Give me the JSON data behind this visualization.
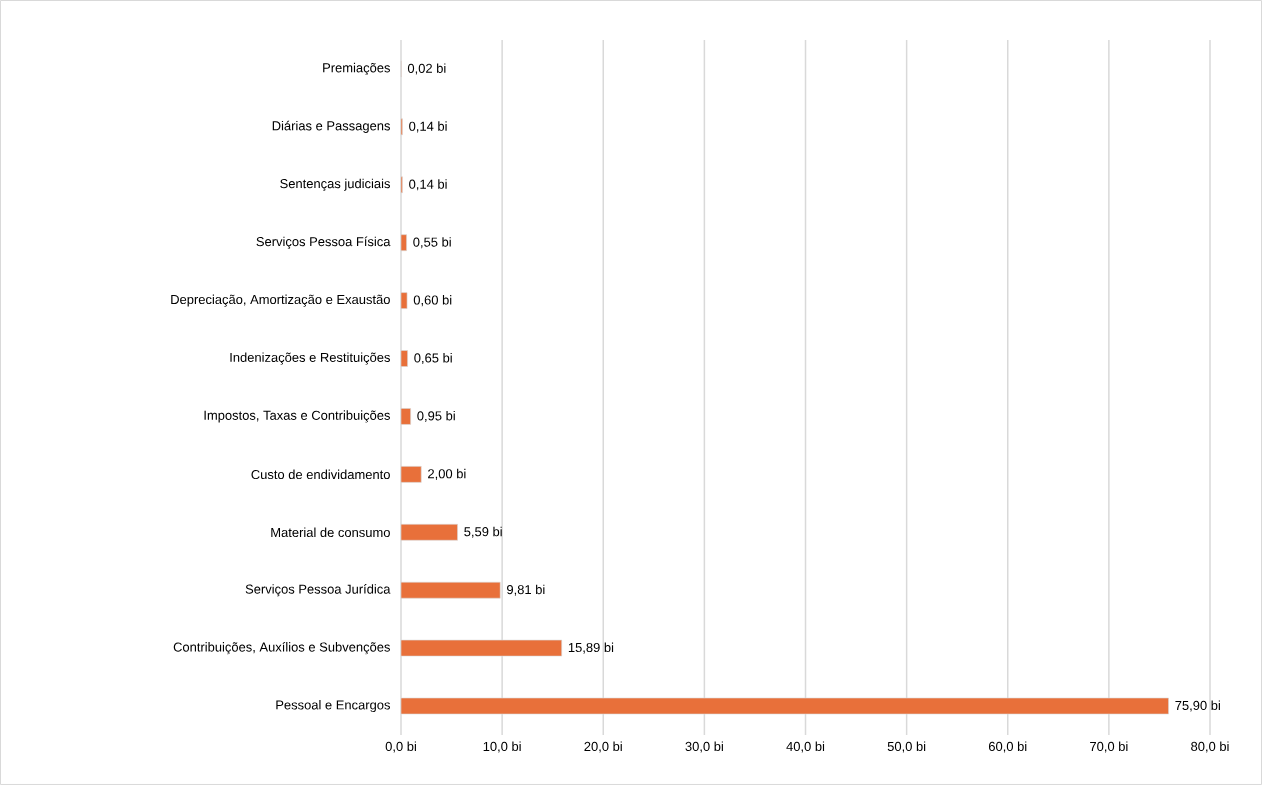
{
  "chart_data": {
    "type": "bar",
    "orientation": "horizontal",
    "categories": [
      "Premiações",
      "Diárias e Passagens",
      "Sentenças judiciais",
      "Serviços Pessoa Física",
      "Depreciação, Amortização e Exaustão",
      "Indenizações e Restituições",
      "Impostos, Taxas e Contribuições",
      "Custo de endividamento",
      "Material de consumo",
      "Serviços Pessoa Jurídica",
      "Contribuições, Auxílios e Subvenções",
      "Pessoal e Encargos"
    ],
    "values": [
      0.02,
      0.14,
      0.14,
      0.55,
      0.6,
      0.65,
      0.95,
      2.0,
      5.59,
      9.81,
      15.89,
      75.9
    ],
    "value_labels": [
      "0,02 bi",
      "0,14 bi",
      "0,14 bi",
      "0,55 bi",
      "0,60 bi",
      "0,65 bi",
      "0,95 bi",
      "2,00 bi",
      "5,59 bi",
      "9,81 bi",
      "15,89 bi",
      "75,90 bi"
    ],
    "color": "#e8703a",
    "xlim": [
      0,
      80
    ],
    "xticks": [
      {
        "value": 0,
        "label": "0,0 bi"
      },
      {
        "value": 10,
        "label": "10,0 bi"
      },
      {
        "value": 20,
        "label": "20,0 bi"
      },
      {
        "value": 30,
        "label": "30,0 bi"
      },
      {
        "value": 40,
        "label": "40,0 bi"
      },
      {
        "value": 50,
        "label": "50,0 bi"
      },
      {
        "value": 60,
        "label": "60,0 bi"
      },
      {
        "value": 70,
        "label": "70,0 bi"
      },
      {
        "value": 80,
        "label": "80,0 bi"
      }
    ],
    "grid": "x"
  }
}
